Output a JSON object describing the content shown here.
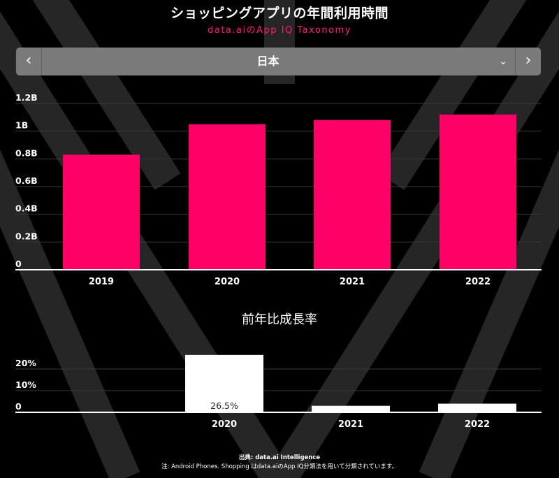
{
  "header": {
    "title": "ショッピングアプリの年間利用時間",
    "subtitle": "data.aiのApp IQ Taxonomy"
  },
  "selector": {
    "left_icon": "chevron-left-icon",
    "right_icon": "chevron-right-icon",
    "dropdown_icon": "chevron-down-icon",
    "value": "日本"
  },
  "colors": {
    "bar_main": "#ff0066",
    "bar_secondary": "#ffffff",
    "background": "#000000",
    "selector_bg": "#7a7a7a",
    "subtitle": "#ff1e78"
  },
  "chart_data": [
    {
      "type": "bar",
      "title": "",
      "categories": [
        "2019",
        "2020",
        "2021",
        "2022"
      ],
      "values": [
        0.83,
        1.05,
        1.08,
        1.12
      ],
      "ylim": [
        0,
        1.2
      ],
      "yticks": [
        0,
        0.2,
        0.4,
        0.6,
        0.8,
        1.0,
        1.2
      ],
      "ytick_labels": [
        "0",
        "0.2B",
        "0.4B",
        "0.6B",
        "0.8B",
        "1B",
        "1.2B"
      ],
      "grid": true
    },
    {
      "type": "bar",
      "title": "前年比成長率",
      "categories": [
        "2020",
        "2021",
        "2022"
      ],
      "values": [
        26.5,
        3.0,
        4.0
      ],
      "data_labels": [
        "26.5%",
        "",
        ""
      ],
      "ylim": [
        0,
        30
      ],
      "yticks": [
        0,
        10,
        20
      ],
      "ytick_labels": [
        "0",
        "10%",
        "20%"
      ],
      "grid": true
    }
  ],
  "footer": {
    "source": "出典: data.ai Intelligence",
    "note": "注: Android Phones. Shopping はdata.aiのApp IQ分類法を用いて分類されています。"
  }
}
